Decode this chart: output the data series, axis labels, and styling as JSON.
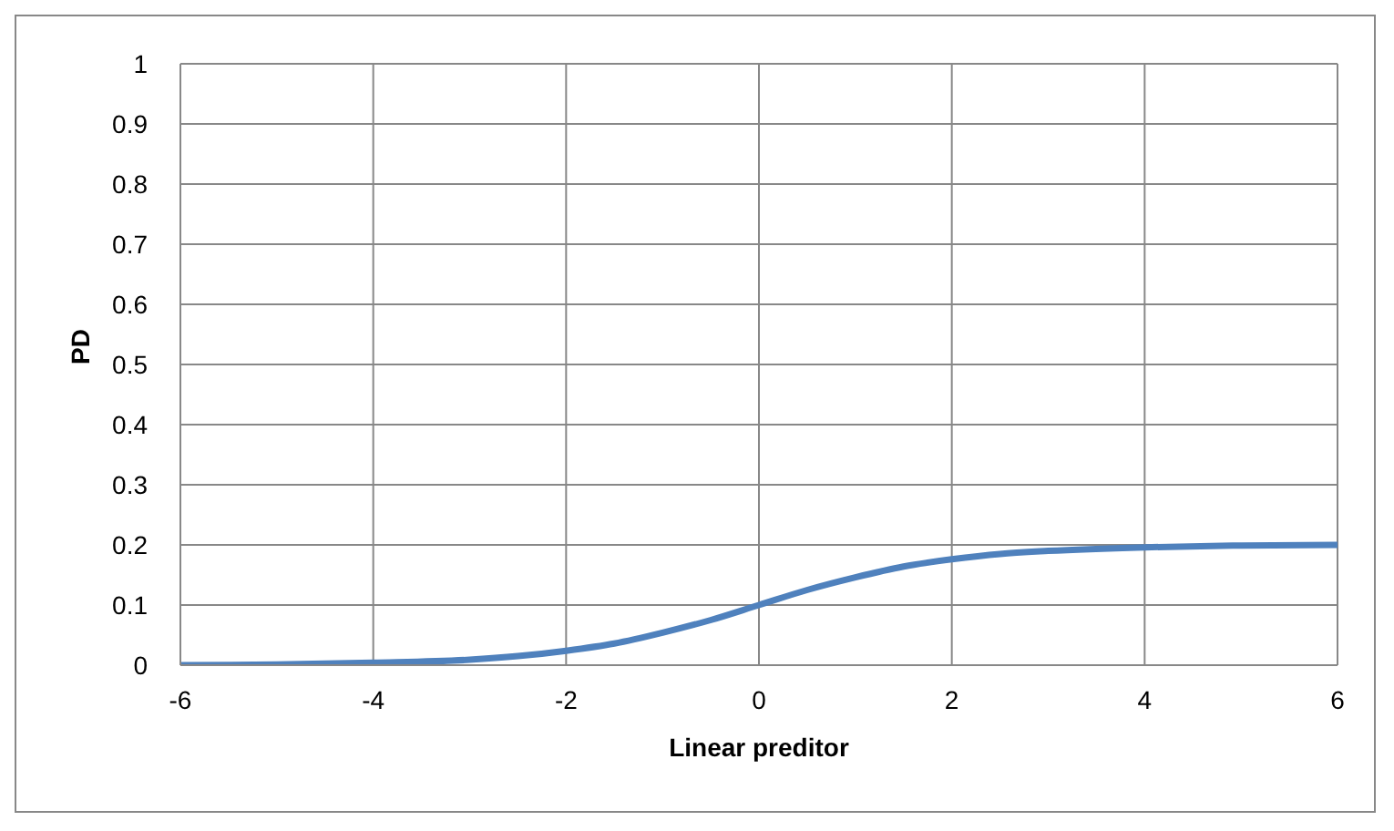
{
  "chart_data": {
    "type": "line",
    "xlabel": "Linear preditor",
    "ylabel": "PD",
    "series": [
      {
        "color": "#4f81bd",
        "x": [
          -6,
          -5,
          -4,
          -3,
          -2.5,
          -2,
          -1.5,
          -1,
          -0.5,
          0,
          0.5,
          1,
          1.5,
          2,
          2.5,
          3,
          4,
          5,
          6
        ],
        "values": [
          0.0,
          0.001,
          0.004,
          0.009,
          0.015,
          0.024,
          0.036,
          0.054,
          0.075,
          0.1,
          0.125,
          0.146,
          0.164,
          0.176,
          0.185,
          0.19,
          0.196,
          0.199,
          0.2
        ]
      }
    ],
    "xlim": [
      -6,
      6
    ],
    "xticks": [
      -6,
      -4,
      -2,
      0,
      2,
      4,
      6
    ],
    "ylim": [
      0,
      1
    ],
    "yticks": [
      0,
      0.1,
      0.2,
      0.3,
      0.4,
      0.5,
      0.6,
      0.7,
      0.8,
      0.9,
      1
    ],
    "grid": true,
    "marker": "none",
    "line_style": "solid"
  }
}
